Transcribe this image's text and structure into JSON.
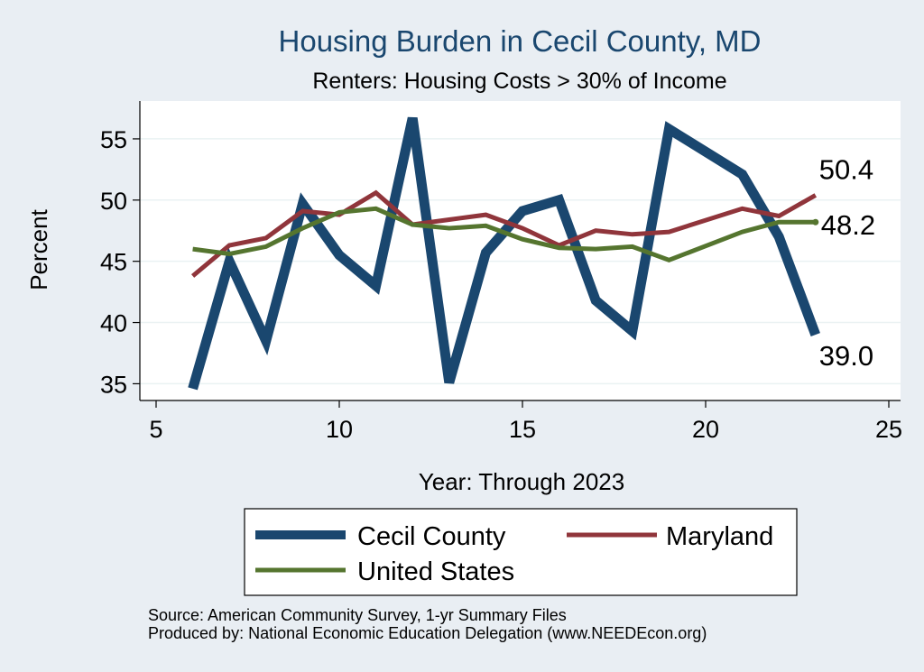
{
  "chart_data": {
    "type": "line",
    "title": "Housing Burden in Cecil County, MD",
    "subtitle": "Renters: Housing Costs > 30% of Income",
    "xlabel": "Year: Through 2023",
    "ylabel": "Percent",
    "xlim": [
      5,
      25
    ],
    "ylim": [
      34,
      57.5
    ],
    "xticks": [
      5,
      10,
      15,
      20,
      25
    ],
    "yticks": [
      35,
      40,
      45,
      50,
      55
    ],
    "grid": true,
    "series": [
      {
        "name": "Cecil County",
        "color": "#1a476f",
        "x": [
          6,
          7,
          8,
          9,
          10,
          11,
          12,
          13,
          14,
          15,
          16,
          17,
          18,
          19,
          21,
          22,
          23
        ],
        "y": [
          34.6,
          45.0,
          38.5,
          49.7,
          45.5,
          43.0,
          56.7,
          35.1,
          45.7,
          49.1,
          50.0,
          41.8,
          39.3,
          55.8,
          52.1,
          47.0,
          39.0
        ]
      },
      {
        "name": "Maryland",
        "color": "#90353b",
        "x": [
          6,
          7,
          8,
          9,
          10,
          11,
          12,
          13,
          14,
          15,
          16,
          17,
          18,
          19,
          21,
          22,
          23
        ],
        "y": [
          43.8,
          46.3,
          46.9,
          49.1,
          48.8,
          50.6,
          48.0,
          48.4,
          48.8,
          47.7,
          46.3,
          47.5,
          47.2,
          47.4,
          49.3,
          48.7,
          50.4
        ]
      },
      {
        "name": "United States",
        "color": "#55752f",
        "x": [
          6,
          7,
          8,
          9,
          10,
          11,
          12,
          13,
          14,
          15,
          16,
          17,
          18,
          19,
          21,
          22,
          23
        ],
        "y": [
          46.0,
          45.6,
          46.2,
          47.7,
          49.0,
          49.3,
          48.0,
          47.7,
          47.9,
          46.8,
          46.1,
          46.0,
          46.2,
          45.1,
          47.4,
          48.2,
          48.2
        ]
      }
    ],
    "end_labels": [
      "39.0",
      "50.4",
      "48.2"
    ],
    "legend": [
      "Cecil County",
      "Maryland",
      "United States"
    ],
    "notes": [
      "Source: American Community Survey, 1-yr Summary Files",
      "Produced by: National Economic Education Delegation (www.NEEDEcon.org)"
    ]
  }
}
